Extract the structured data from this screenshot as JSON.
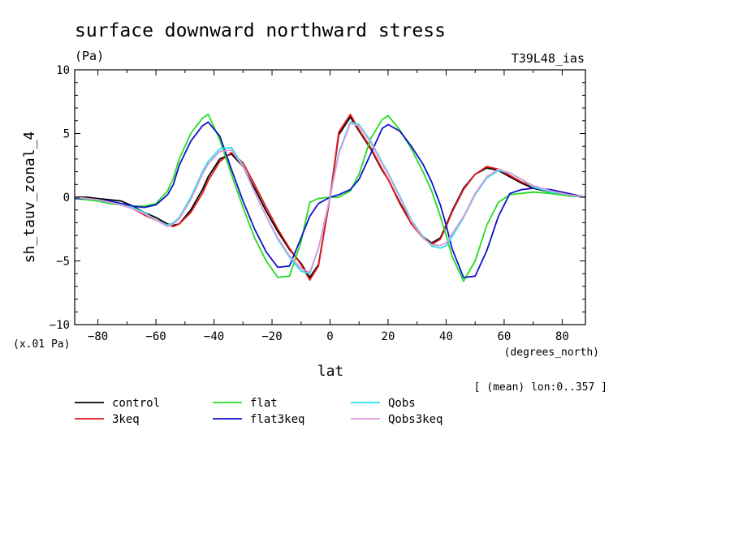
{
  "chart_data": {
    "type": "line",
    "title": "surface downward northward stress",
    "units": "(Pa)",
    "experiment": "T39L48_ias",
    "ylabel": "sh_tauv_zonal_4",
    "yscale_note": "(x.01 Pa)",
    "xlabel": "lat",
    "xunits": "(degrees_north)",
    "averaging_note": "[ (mean) lon:0..357 ]",
    "xlim": [
      -88,
      88
    ],
    "ylim": [
      -10,
      10
    ],
    "xticks": [
      -80,
      -60,
      -40,
      -20,
      0,
      20,
      40,
      60,
      80
    ],
    "yticks": [
      -10,
      -5,
      0,
      5,
      10
    ],
    "x": [
      -88,
      -84,
      -80,
      -76,
      -72,
      -68,
      -64,
      -60,
      -56,
      -54,
      -52,
      -48,
      -44,
      -42,
      -38,
      -34,
      -30,
      -26,
      -22,
      -18,
      -14,
      -10,
      -7,
      -4,
      0,
      3,
      7,
      10,
      14,
      18,
      20,
      24,
      28,
      32,
      35,
      38,
      40,
      42,
      46,
      50,
      54,
      58,
      62,
      66,
      70,
      76,
      82,
      88
    ],
    "series": [
      {
        "name": "control",
        "color": "#000000",
        "values": [
          0.0,
          0.0,
          -0.1,
          -0.2,
          -0.3,
          -0.7,
          -1.2,
          -1.6,
          -2.1,
          -2.2,
          -2.1,
          -1.0,
          0.6,
          1.6,
          3.0,
          3.4,
          2.4,
          0.7,
          -1.1,
          -2.7,
          -4.1,
          -5.2,
          -6.3,
          -5.3,
          0.0,
          4.9,
          6.3,
          5.2,
          3.8,
          2.1,
          1.4,
          -0.4,
          -2.0,
          -3.1,
          -3.6,
          -3.2,
          -2.2,
          -1.1,
          0.7,
          1.8,
          2.3,
          2.1,
          1.6,
          1.1,
          0.7,
          0.4,
          0.2,
          0.0
        ]
      },
      {
        "name": "3keq",
        "color": "#e41a1c",
        "values": [
          0.0,
          -0.1,
          -0.2,
          -0.4,
          -0.6,
          -0.9,
          -1.4,
          -1.8,
          -2.2,
          -2.3,
          -2.1,
          -1.2,
          0.3,
          1.3,
          2.8,
          3.5,
          2.7,
          1.0,
          -0.8,
          -2.5,
          -4.0,
          -5.3,
          -6.5,
          -5.4,
          0.0,
          5.1,
          6.5,
          5.3,
          3.9,
          2.2,
          1.4,
          -0.5,
          -2.1,
          -3.2,
          -3.7,
          -3.3,
          -2.3,
          -1.2,
          0.6,
          1.8,
          2.4,
          2.2,
          1.7,
          1.2,
          0.8,
          0.5,
          0.2,
          0.0
        ]
      },
      {
        "name": "flat",
        "color": "#22dd22",
        "values": [
          -0.1,
          -0.2,
          -0.3,
          -0.5,
          -0.6,
          -0.7,
          -0.7,
          -0.5,
          0.5,
          1.5,
          3.0,
          5.0,
          6.2,
          6.5,
          4.5,
          1.8,
          -0.8,
          -3.2,
          -5.0,
          -6.3,
          -6.2,
          -3.5,
          -0.4,
          -0.1,
          0.0,
          0.0,
          0.5,
          1.8,
          4.6,
          6.1,
          6.4,
          5.3,
          3.8,
          2.0,
          0.5,
          -1.5,
          -3.0,
          -4.6,
          -6.6,
          -5.0,
          -2.2,
          -0.4,
          0.2,
          0.3,
          0.4,
          0.3,
          0.1,
          0.0
        ]
      },
      {
        "name": "flat3keq",
        "color": "#1111cc",
        "values": [
          -0.1,
          -0.1,
          -0.2,
          -0.3,
          -0.5,
          -0.7,
          -0.8,
          -0.6,
          0.2,
          1.0,
          2.5,
          4.4,
          5.6,
          5.9,
          4.8,
          2.2,
          -0.3,
          -2.5,
          -4.3,
          -5.5,
          -5.4,
          -3.2,
          -1.5,
          -0.5,
          0.0,
          0.2,
          0.6,
          1.4,
          3.4,
          5.4,
          5.7,
          5.2,
          4.0,
          2.6,
          1.2,
          -0.6,
          -2.2,
          -4.0,
          -6.3,
          -6.2,
          -4.2,
          -1.5,
          0.3,
          0.6,
          0.7,
          0.6,
          0.3,
          0.0
        ]
      },
      {
        "name": "Qobs",
        "color": "#22e5e5",
        "values": [
          0.0,
          -0.1,
          -0.2,
          -0.4,
          -0.6,
          -0.8,
          -1.2,
          -1.8,
          -2.2,
          -2.0,
          -1.6,
          0.0,
          2.0,
          2.8,
          3.8,
          3.9,
          2.5,
          0.4,
          -1.5,
          -3.3,
          -4.7,
          -5.8,
          -6.0,
          -4.0,
          0.0,
          3.5,
          5.9,
          5.7,
          4.4,
          2.7,
          1.9,
          0.1,
          -1.8,
          -3.1,
          -3.8,
          -4.0,
          -3.8,
          -3.1,
          -1.6,
          0.2,
          1.5,
          2.1,
          1.9,
          1.4,
          0.8,
          0.4,
          0.2,
          0.0
        ]
      },
      {
        "name": "Qobs3keq",
        "color": "#dd99dd",
        "values": [
          0.0,
          -0.1,
          -0.2,
          -0.4,
          -0.6,
          -0.9,
          -1.3,
          -1.8,
          -2.3,
          -2.1,
          -1.7,
          -0.2,
          1.8,
          2.6,
          3.6,
          3.7,
          2.4,
          0.4,
          -1.5,
          -3.2,
          -4.6,
          -5.6,
          -5.9,
          -4.0,
          0.0,
          3.4,
          5.8,
          5.6,
          4.3,
          2.6,
          1.8,
          0.0,
          -1.9,
          -3.2,
          -3.7,
          -3.8,
          -3.6,
          -2.9,
          -1.5,
          0.3,
          1.6,
          2.2,
          1.9,
          1.4,
          0.9,
          0.5,
          0.2,
          0.0
        ]
      }
    ]
  }
}
